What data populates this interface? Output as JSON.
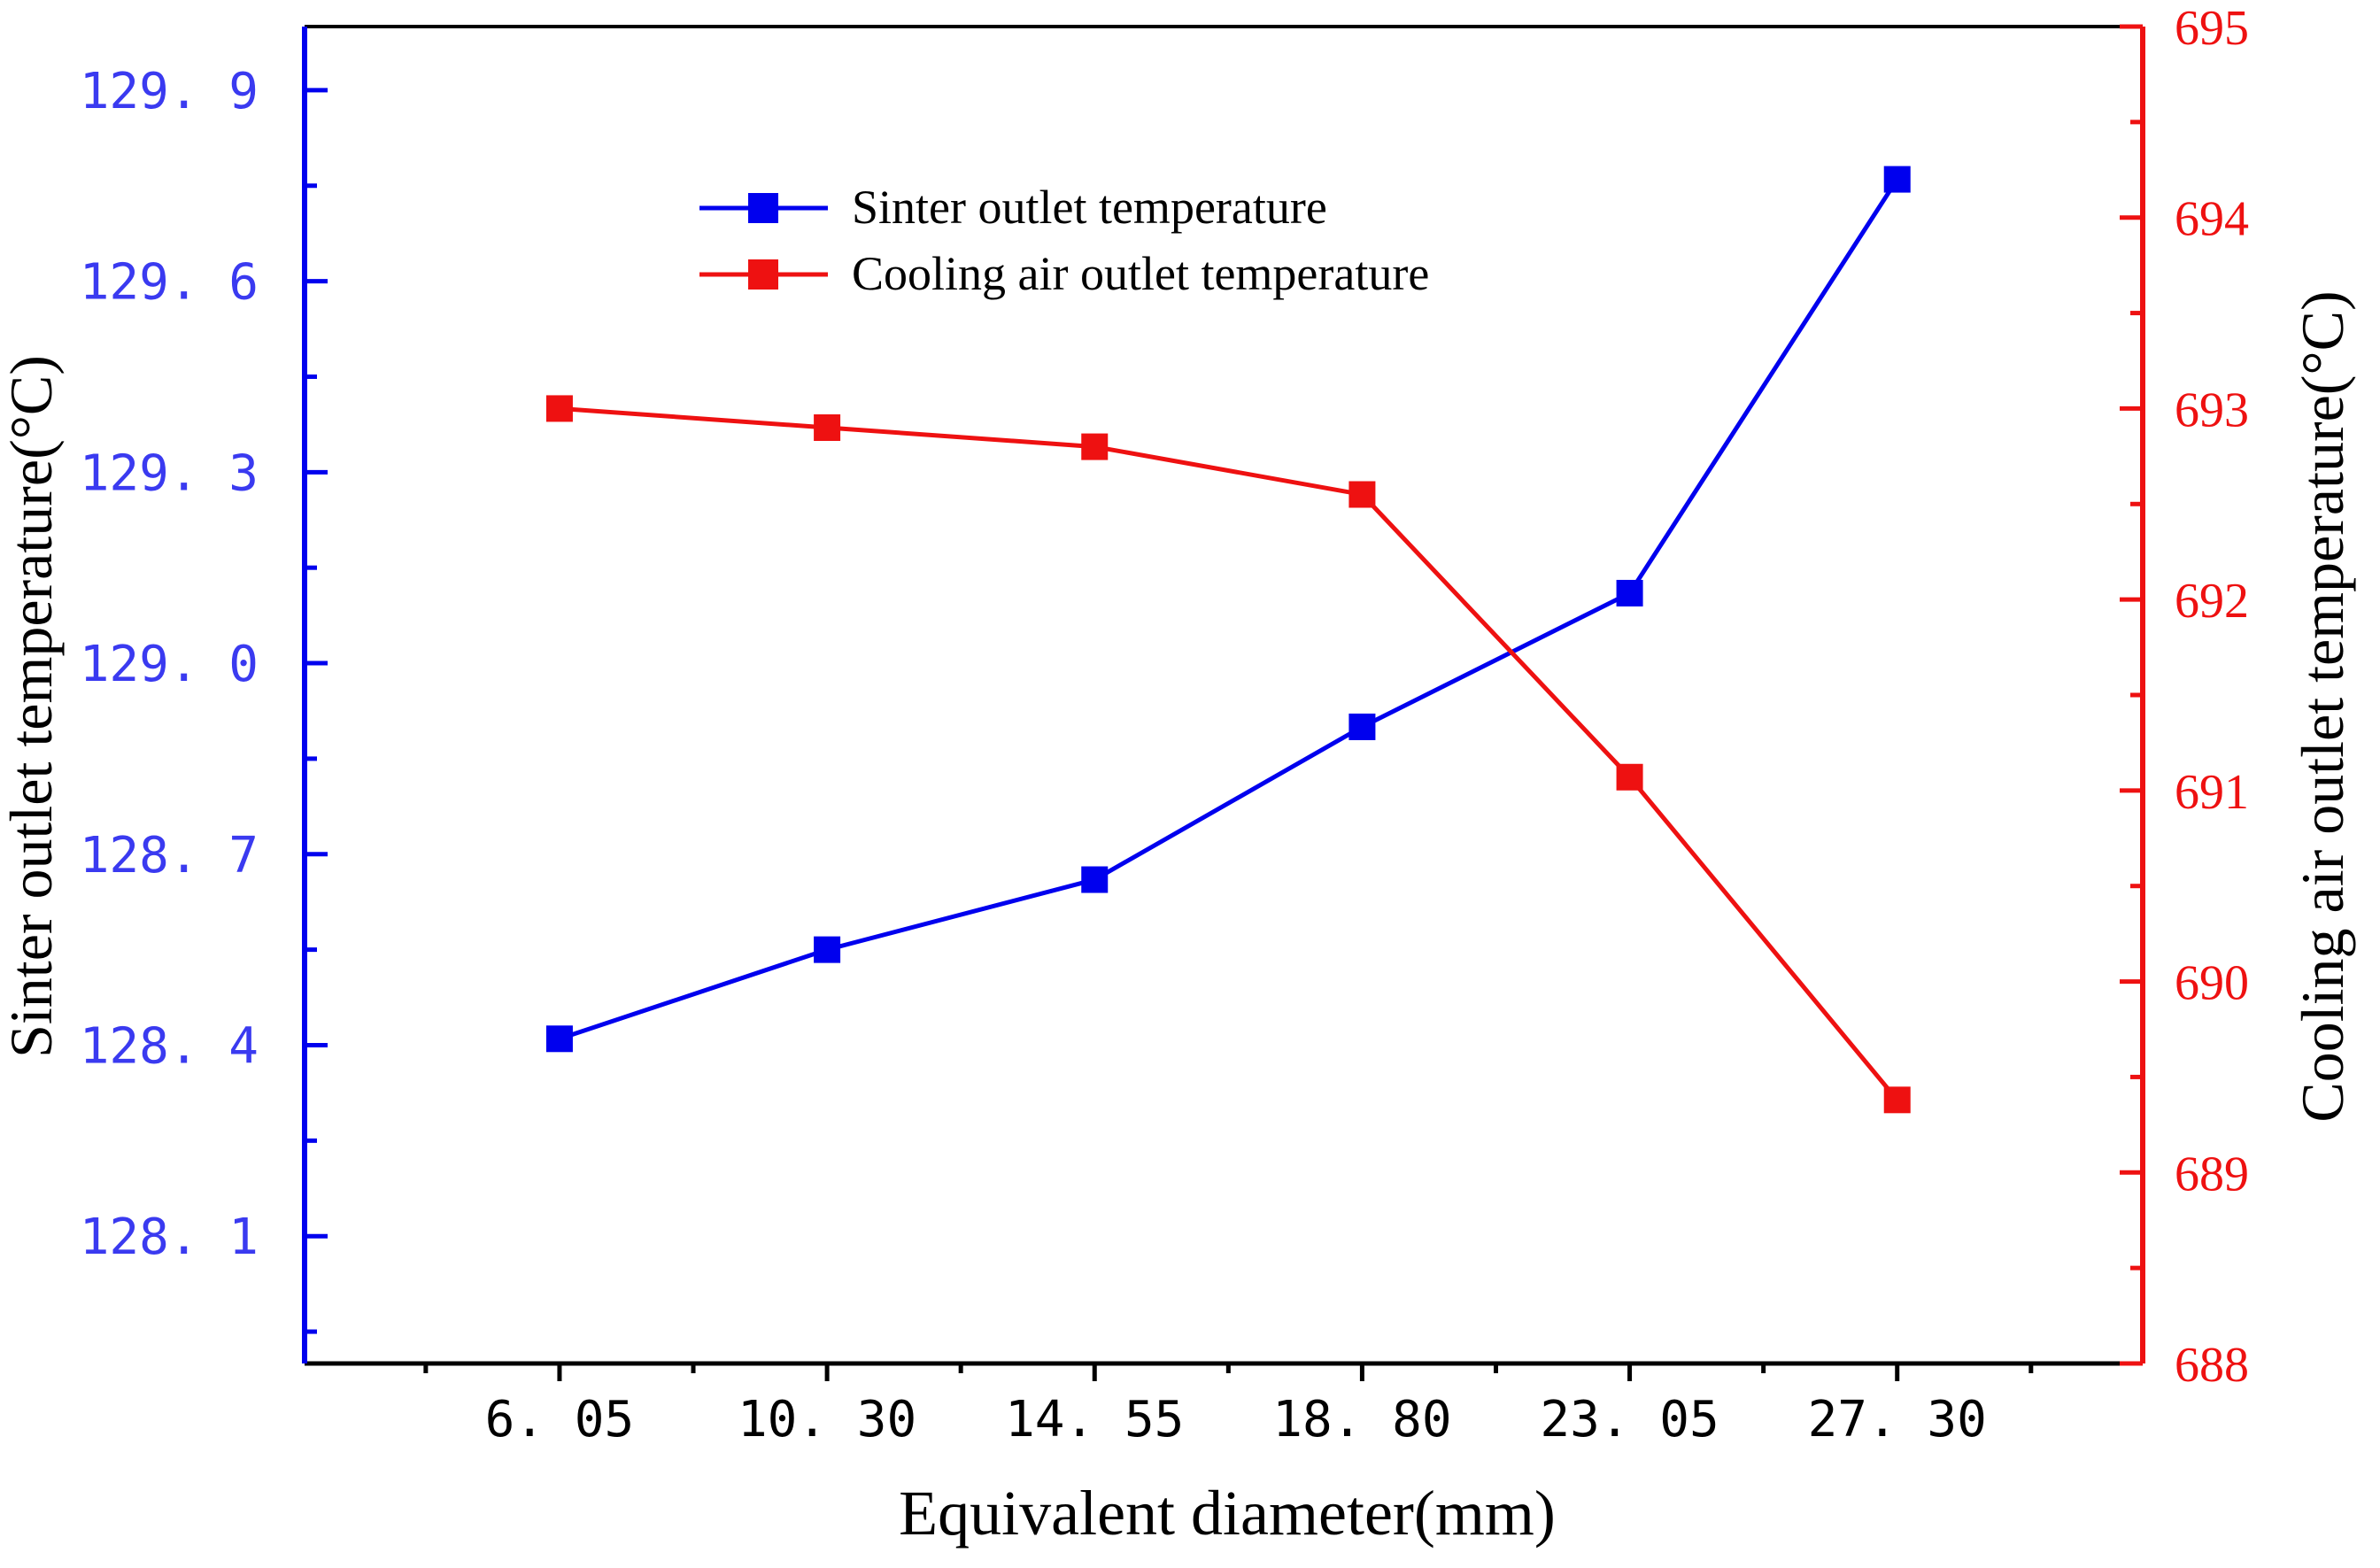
{
  "chart_data": {
    "type": "line",
    "title": "",
    "xlabel": "Equivalent diameter(mm)",
    "ylabel_left": "Sinter outlet temperature(°C)",
    "ylabel_right": "Cooling air outlet temperature(°C)",
    "categories": [
      "6. 05",
      "10. 30",
      "14. 55",
      "18. 80",
      "23. 05",
      "27. 30"
    ],
    "x": [
      6.05,
      10.3,
      14.55,
      18.8,
      23.05,
      27.3
    ],
    "xlim": [
      2.0,
      31.2
    ],
    "y_left": {
      "lim": [
        127.9,
        130.0
      ],
      "ticks": [
        128.1,
        128.4,
        128.7,
        129.0,
        129.3,
        129.6,
        129.9
      ],
      "tick_labels": [
        "128. 1",
        "128. 4",
        "128. 7",
        "129. 0",
        "129. 3",
        "129. 6",
        "129. 9"
      ]
    },
    "y_right": {
      "lim": [
        688,
        695
      ],
      "ticks": [
        688,
        689,
        690,
        691,
        692,
        693,
        694,
        695
      ],
      "tick_labels": [
        "688",
        "689",
        "690",
        "691",
        "692",
        "693",
        "694",
        "695"
      ]
    },
    "series": [
      {
        "name": "Sinter outlet temperature",
        "axis": "left",
        "color": "#0000ee",
        "marker": "square",
        "values": [
          128.41,
          128.55,
          128.66,
          128.9,
          129.11,
          129.76
        ]
      },
      {
        "name": "Cooling air outlet temperature",
        "axis": "right",
        "color": "#ee1111",
        "marker": "square",
        "values": [
          693.0,
          692.9,
          692.8,
          692.55,
          691.07,
          689.38
        ]
      }
    ],
    "legend_position": "top-center",
    "grid": false,
    "colors": {
      "frame": "#000000",
      "left_axis": "#0000ee",
      "left_tick_text": "#3a3af0",
      "right_axis": "#ee1111",
      "right_tick_text": "#ee1111"
    }
  }
}
